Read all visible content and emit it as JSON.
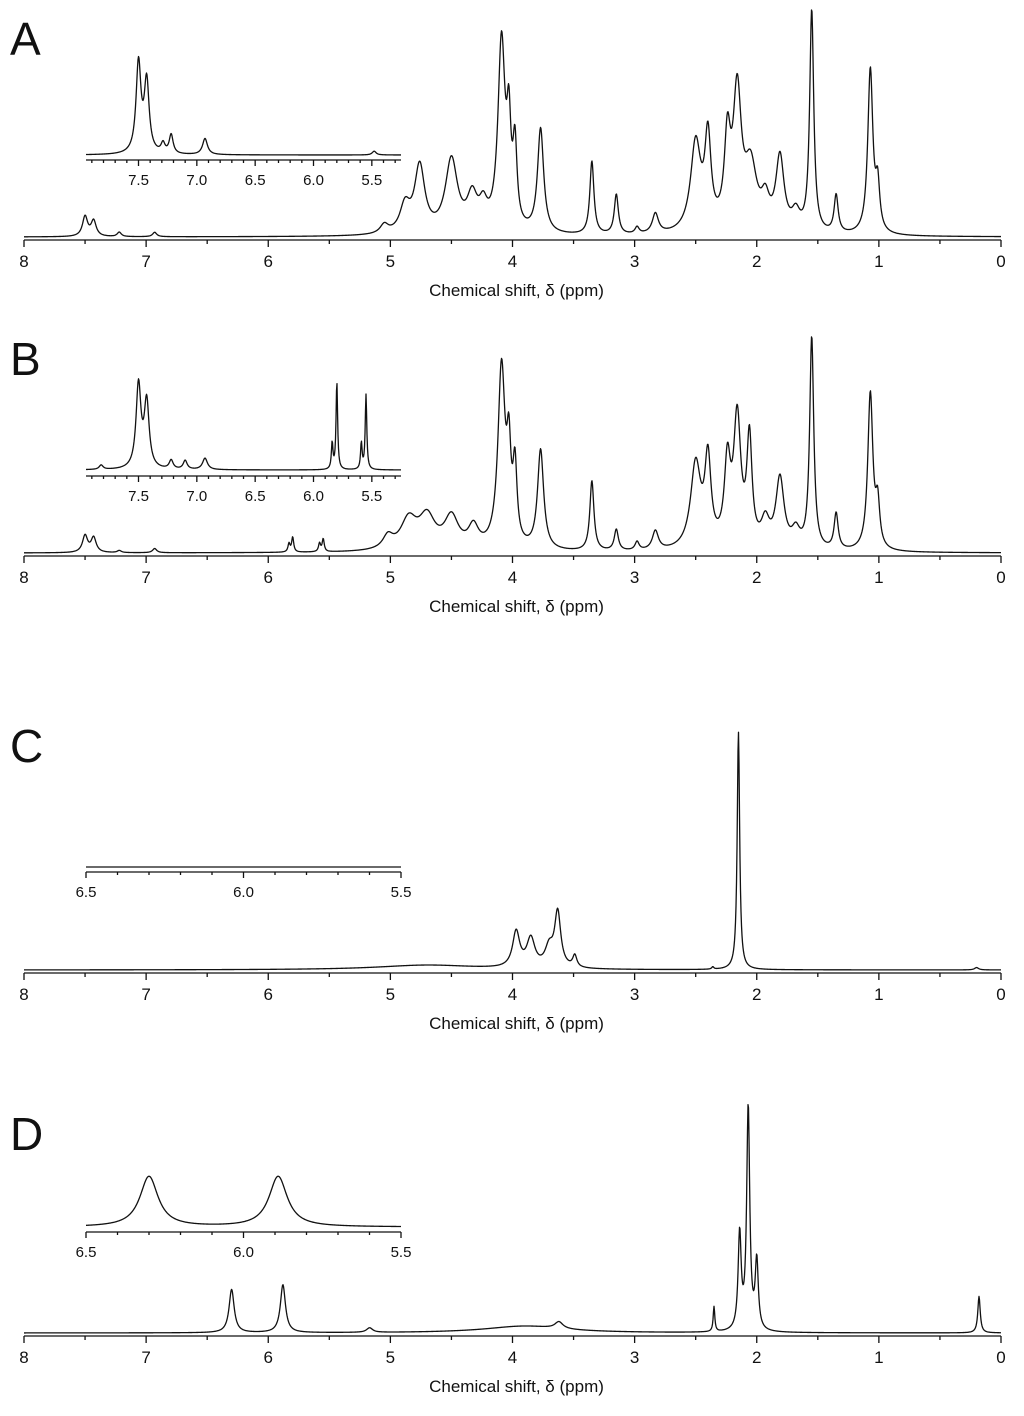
{
  "chart_data": [
    {
      "panel": "A",
      "type": "line",
      "xlabel": "Chemical shift, δ (ppm)",
      "xlim": [
        8,
        0
      ],
      "xticks": [
        "8",
        "7",
        "6",
        "5",
        "4",
        "3",
        "2",
        "1",
        "0"
      ],
      "grid": false,
      "baseline": 0,
      "peaks": [
        {
          "x": 7.5,
          "h": 0.09,
          "w": 0.025
        },
        {
          "x": 7.43,
          "h": 0.07,
          "w": 0.025
        },
        {
          "x": 7.22,
          "h": 0.02,
          "w": 0.02
        },
        {
          "x": 6.93,
          "h": 0.02,
          "w": 0.02
        },
        {
          "x": 5.05,
          "h": 0.04,
          "w": 0.04
        },
        {
          "x": 4.88,
          "h": 0.12,
          "w": 0.05
        },
        {
          "x": 4.76,
          "h": 0.3,
          "w": 0.05
        },
        {
          "x": 4.5,
          "h": 0.33,
          "w": 0.06
        },
        {
          "x": 4.33,
          "h": 0.15,
          "w": 0.05
        },
        {
          "x": 4.24,
          "h": 0.1,
          "w": 0.04
        },
        {
          "x": 4.09,
          "h": 0.85,
          "w": 0.035
        },
        {
          "x": 4.03,
          "h": 0.4,
          "w": 0.02
        },
        {
          "x": 3.98,
          "h": 0.35,
          "w": 0.02
        },
        {
          "x": 3.77,
          "h": 0.47,
          "w": 0.03
        },
        {
          "x": 3.35,
          "h": 0.33,
          "w": 0.02
        },
        {
          "x": 3.15,
          "h": 0.18,
          "w": 0.02
        },
        {
          "x": 2.98,
          "h": 0.03,
          "w": 0.02
        },
        {
          "x": 2.83,
          "h": 0.09,
          "w": 0.03
        },
        {
          "x": 2.5,
          "h": 0.4,
          "w": 0.05
        },
        {
          "x": 2.4,
          "h": 0.4,
          "w": 0.03
        },
        {
          "x": 2.24,
          "h": 0.38,
          "w": 0.03
        },
        {
          "x": 2.16,
          "h": 0.6,
          "w": 0.04
        },
        {
          "x": 2.05,
          "h": 0.28,
          "w": 0.06
        },
        {
          "x": 1.93,
          "h": 0.12,
          "w": 0.04
        },
        {
          "x": 1.81,
          "h": 0.33,
          "w": 0.04
        },
        {
          "x": 1.68,
          "h": 0.08,
          "w": 0.04
        },
        {
          "x": 1.55,
          "h": 1.0,
          "w": 0.02
        },
        {
          "x": 1.35,
          "h": 0.17,
          "w": 0.02
        },
        {
          "x": 1.07,
          "h": 0.74,
          "w": 0.025
        },
        {
          "x": 1.01,
          "h": 0.2,
          "w": 0.02
        }
      ],
      "inset": {
        "xlim": [
          7.95,
          5.25
        ],
        "xticks": [
          "7.5",
          "7.0",
          "6.5",
          "6.0",
          "5.5"
        ],
        "peaks": [
          {
            "x": 7.5,
            "h": 0.95,
            "w": 0.025
          },
          {
            "x": 7.43,
            "h": 0.75,
            "w": 0.025
          },
          {
            "x": 7.29,
            "h": 0.1,
            "w": 0.02
          },
          {
            "x": 7.22,
            "h": 0.2,
            "w": 0.02
          },
          {
            "x": 6.93,
            "h": 0.17,
            "w": 0.025
          },
          {
            "x": 5.48,
            "h": 0.04,
            "w": 0.02
          }
        ]
      }
    },
    {
      "panel": "B",
      "type": "line",
      "xlabel": "Chemical shift, δ (ppm)",
      "xlim": [
        8,
        0
      ],
      "xticks": [
        "8",
        "7",
        "6",
        "5",
        "4",
        "3",
        "2",
        "1",
        "0"
      ],
      "grid": false,
      "baseline": 0,
      "peaks": [
        {
          "x": 7.5,
          "h": 0.08,
          "w": 0.025
        },
        {
          "x": 7.43,
          "h": 0.07,
          "w": 0.025
        },
        {
          "x": 7.22,
          "h": 0.01,
          "w": 0.02
        },
        {
          "x": 6.93,
          "h": 0.02,
          "w": 0.02
        },
        {
          "x": 5.83,
          "h": 0.04,
          "w": 0.01
        },
        {
          "x": 5.8,
          "h": 0.07,
          "w": 0.01
        },
        {
          "x": 5.58,
          "h": 0.04,
          "w": 0.01
        },
        {
          "x": 5.55,
          "h": 0.06,
          "w": 0.01
        },
        {
          "x": 5.02,
          "h": 0.06,
          "w": 0.05
        },
        {
          "x": 4.85,
          "h": 0.14,
          "w": 0.08
        },
        {
          "x": 4.7,
          "h": 0.15,
          "w": 0.08
        },
        {
          "x": 4.5,
          "h": 0.15,
          "w": 0.07
        },
        {
          "x": 4.32,
          "h": 0.1,
          "w": 0.05
        },
        {
          "x": 4.09,
          "h": 0.85,
          "w": 0.035
        },
        {
          "x": 4.03,
          "h": 0.38,
          "w": 0.02
        },
        {
          "x": 3.98,
          "h": 0.35,
          "w": 0.02
        },
        {
          "x": 3.77,
          "h": 0.47,
          "w": 0.03
        },
        {
          "x": 3.35,
          "h": 0.33,
          "w": 0.02
        },
        {
          "x": 3.15,
          "h": 0.1,
          "w": 0.02
        },
        {
          "x": 2.98,
          "h": 0.04,
          "w": 0.02
        },
        {
          "x": 2.83,
          "h": 0.09,
          "w": 0.03
        },
        {
          "x": 2.5,
          "h": 0.4,
          "w": 0.05
        },
        {
          "x": 2.4,
          "h": 0.4,
          "w": 0.03
        },
        {
          "x": 2.24,
          "h": 0.38,
          "w": 0.03
        },
        {
          "x": 2.16,
          "h": 0.6,
          "w": 0.035
        },
        {
          "x": 2.06,
          "h": 0.5,
          "w": 0.025
        },
        {
          "x": 1.93,
          "h": 0.12,
          "w": 0.04
        },
        {
          "x": 1.81,
          "h": 0.33,
          "w": 0.04
        },
        {
          "x": 1.68,
          "h": 0.08,
          "w": 0.04
        },
        {
          "x": 1.55,
          "h": 1.0,
          "w": 0.02
        },
        {
          "x": 1.35,
          "h": 0.17,
          "w": 0.02
        },
        {
          "x": 1.07,
          "h": 0.74,
          "w": 0.025
        },
        {
          "x": 1.01,
          "h": 0.2,
          "w": 0.02
        }
      ],
      "inset": {
        "xlim": [
          7.95,
          5.25
        ],
        "xticks": [
          "7.5",
          "7.0",
          "6.5",
          "6.0",
          "5.5"
        ],
        "peaks": [
          {
            "x": 7.82,
            "h": 0.05,
            "w": 0.02
          },
          {
            "x": 7.5,
            "h": 0.95,
            "w": 0.025
          },
          {
            "x": 7.43,
            "h": 0.75,
            "w": 0.025
          },
          {
            "x": 7.22,
            "h": 0.1,
            "w": 0.02
          },
          {
            "x": 7.1,
            "h": 0.1,
            "w": 0.02
          },
          {
            "x": 6.93,
            "h": 0.13,
            "w": 0.025
          },
          {
            "x": 5.84,
            "h": 0.3,
            "w": 0.008
          },
          {
            "x": 5.8,
            "h": 1.0,
            "w": 0.008
          },
          {
            "x": 5.59,
            "h": 0.3,
            "w": 0.008
          },
          {
            "x": 5.55,
            "h": 0.85,
            "w": 0.008
          }
        ]
      }
    },
    {
      "panel": "C",
      "type": "line",
      "xlabel": "Chemical shift, δ (ppm)",
      "xlim": [
        8,
        0
      ],
      "xticks": [
        "8",
        "7",
        "6",
        "5",
        "4",
        "3",
        "2",
        "1",
        "0"
      ],
      "grid": false,
      "baseline": 0,
      "peaks": [
        {
          "x": 4.7,
          "h": 0.02,
          "w": 0.5
        },
        {
          "x": 3.97,
          "h": 0.15,
          "w": 0.035
        },
        {
          "x": 3.85,
          "h": 0.12,
          "w": 0.04
        },
        {
          "x": 3.7,
          "h": 0.08,
          "w": 0.04
        },
        {
          "x": 3.63,
          "h": 0.23,
          "w": 0.03
        },
        {
          "x": 3.49,
          "h": 0.05,
          "w": 0.02
        },
        {
          "x": 2.36,
          "h": 0.01,
          "w": 0.01
        },
        {
          "x": 2.15,
          "h": 1.0,
          "w": 0.012
        },
        {
          "x": 0.2,
          "h": 0.01,
          "w": 0.02
        }
      ],
      "inset": {
        "xlim": [
          6.5,
          5.5
        ],
        "xticks": [
          "6.5",
          "6.0",
          "5.5"
        ],
        "peaks": []
      }
    },
    {
      "panel": "D",
      "type": "line",
      "xlabel": "Chemical shift, δ (ppm)",
      "xlim": [
        8,
        0
      ],
      "xticks": [
        "8",
        "7",
        "6",
        "5",
        "4",
        "3",
        "2",
        "1",
        "0"
      ],
      "grid": false,
      "baseline": 0,
      "peaks": [
        {
          "x": 6.3,
          "h": 0.19,
          "w": 0.025
        },
        {
          "x": 5.88,
          "h": 0.21,
          "w": 0.025
        },
        {
          "x": 5.17,
          "h": 0.02,
          "w": 0.03
        },
        {
          "x": 3.9,
          "h": 0.03,
          "w": 0.4
        },
        {
          "x": 3.62,
          "h": 0.03,
          "w": 0.04
        },
        {
          "x": 2.35,
          "h": 0.11,
          "w": 0.008
        },
        {
          "x": 2.14,
          "h": 0.42,
          "w": 0.015
        },
        {
          "x": 2.07,
          "h": 0.98,
          "w": 0.015
        },
        {
          "x": 2.0,
          "h": 0.3,
          "w": 0.015
        },
        {
          "x": 0.18,
          "h": 0.16,
          "w": 0.012
        }
      ],
      "inset": {
        "xlim": [
          6.5,
          5.5
        ],
        "xticks": [
          "6.5",
          "6.0",
          "5.5"
        ],
        "peaks": [
          {
            "x": 6.3,
            "h": 0.8,
            "w": 0.035
          },
          {
            "x": 5.89,
            "h": 0.8,
            "w": 0.035
          }
        ]
      }
    }
  ]
}
